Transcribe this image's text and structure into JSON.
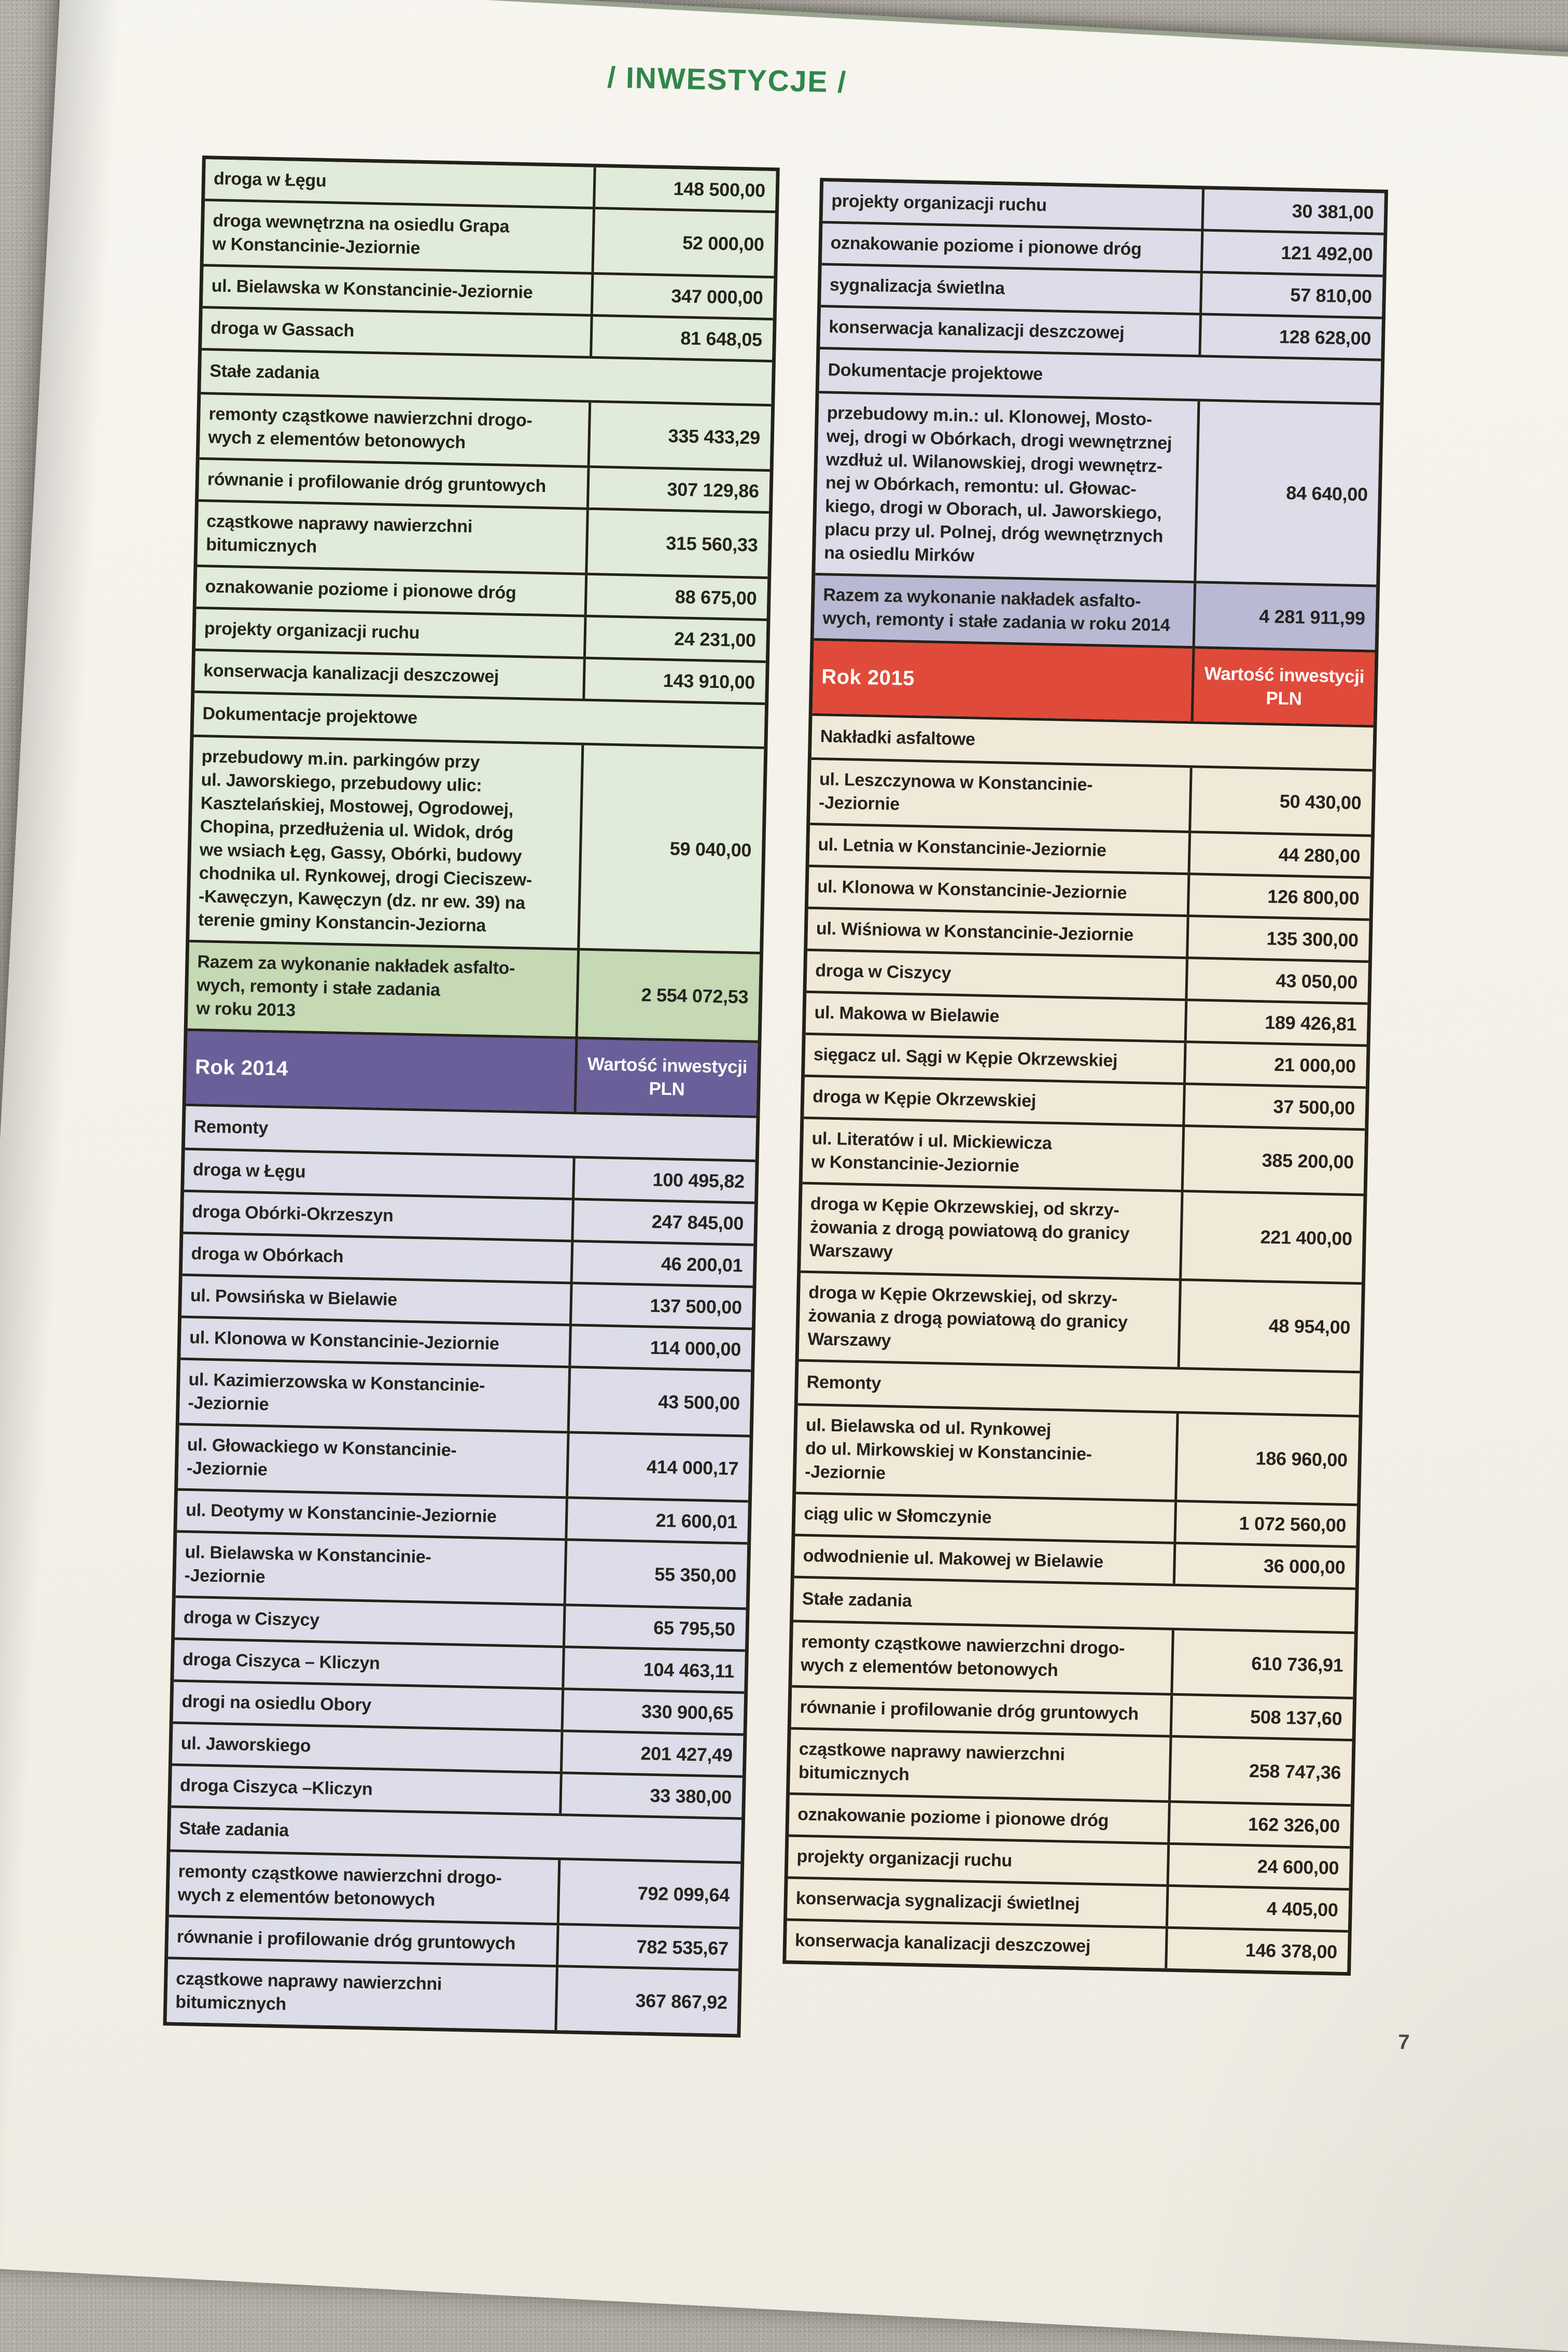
{
  "page": {
    "header": "/ INWESTYCJE /",
    "page_number": "7"
  },
  "value_column_header": "Wartość inwestycji\nPLN",
  "colors": {
    "header_green": "#2f8749",
    "row_green_2013": "#e1ebd9",
    "total_green_2013": "#c4d9b4",
    "year_purple_2014": "#6b5f99",
    "row_lavender_2014": "#dcdde8",
    "total_lavender_2014": "#b9b9d3",
    "year_red_2015": "#e04a3a",
    "row_cream_2015": "#f1e9d8"
  },
  "left_table": {
    "rows": [
      {
        "type": "item",
        "style": "green",
        "label": "droga w Łęgu",
        "value": "148 500,00"
      },
      {
        "type": "item",
        "style": "green",
        "label": "droga wewnętrzna na osiedlu Grapa\nw Konstancinie-Jeziornie",
        "value": "52 000,00"
      },
      {
        "type": "item",
        "style": "green",
        "label": "ul. Bielawska w Konstancinie-Jeziornie",
        "value": "347 000,00"
      },
      {
        "type": "item",
        "style": "green",
        "label": "droga w Gassach",
        "value": "81 648,05"
      },
      {
        "type": "section",
        "style": "green",
        "label": "Stałe zadania"
      },
      {
        "type": "item",
        "style": "green",
        "label": "remonty cząstkowe nawierzchni drogo-\nwych z elementów betonowych",
        "value": "335 433,29"
      },
      {
        "type": "item",
        "style": "green",
        "label": "równanie i profilowanie dróg gruntowych",
        "value": "307 129,86"
      },
      {
        "type": "item",
        "style": "green",
        "label": "cząstkowe naprawy nawierzchni\nbitumicznych",
        "value": "315 560,33"
      },
      {
        "type": "item",
        "style": "green",
        "label": "oznakowanie poziome i pionowe dróg",
        "value": "88 675,00"
      },
      {
        "type": "item",
        "style": "green",
        "label": "projekty organizacji ruchu",
        "value": "24 231,00"
      },
      {
        "type": "item",
        "style": "green",
        "label": "konserwacja kanalizacji deszczowej",
        "value": "143 910,00"
      },
      {
        "type": "section",
        "style": "green",
        "label": "Dokumentacje projektowe"
      },
      {
        "type": "item",
        "style": "green",
        "label": "przebudowy m.in. parkingów przy\nul. Jaworskiego, przebudowy ulic:\nKasztelańskiej, Mostowej, Ogrodowej,\nChopina, przedłużenia ul. Widok, dróg\nwe wsiach Łęg, Gassy, Obórki, budowy\nchodnika ul. Rynkowej, drogi Cieciszew-\n-Kawęczyn, Kawęczyn (dz. nr ew. 39) na\nterenie gminy Konstancin-Jeziorna",
        "value": "59 040,00"
      },
      {
        "type": "total",
        "style": "green-total",
        "label": "Razem za wykonanie nakładek asfalto-\nwych, remonty i stałe zadania\nw roku 2013",
        "value": "2 554 072,53"
      },
      {
        "type": "year",
        "style": "purple",
        "label": "Rok 2014"
      },
      {
        "type": "section",
        "style": "lav",
        "label": "Remonty"
      },
      {
        "type": "item",
        "style": "lav",
        "label": "droga w Łęgu",
        "value": "100 495,82"
      },
      {
        "type": "item",
        "style": "lav",
        "label": "droga Obórki-Okrzeszyn",
        "value": "247 845,00"
      },
      {
        "type": "item",
        "style": "lav",
        "label": "droga w Obórkach",
        "value": "46 200,01"
      },
      {
        "type": "item",
        "style": "lav",
        "label": "ul. Powsińska w Bielawie",
        "value": "137 500,00"
      },
      {
        "type": "item",
        "style": "lav",
        "label": "ul. Klonowa w Konstancinie-Jeziornie",
        "value": "114 000,00"
      },
      {
        "type": "item",
        "style": "lav",
        "label": "ul. Kazimierzowska w Konstancinie-\n-Jeziornie",
        "value": "43 500,00"
      },
      {
        "type": "item",
        "style": "lav",
        "label": "ul. Głowackiego w Konstancinie-\n-Jeziornie",
        "value": "414 000,17"
      },
      {
        "type": "item",
        "style": "lav",
        "label": "ul. Deotymy w Konstancinie-Jeziornie",
        "value": "21 600,01"
      },
      {
        "type": "item",
        "style": "lav",
        "label": "ul. Bielawska w Konstancinie-\n-Jeziornie",
        "value": "55 350,00"
      },
      {
        "type": "item",
        "style": "lav",
        "label": "droga w Ciszycy",
        "value": "65 795,50"
      },
      {
        "type": "item",
        "style": "lav",
        "label": "droga Ciszyca – Kliczyn",
        "value": "104 463,11"
      },
      {
        "type": "item",
        "style": "lav",
        "label": "drogi na osiedlu Obory",
        "value": "330 900,65"
      },
      {
        "type": "item",
        "style": "lav",
        "label": "ul. Jaworskiego",
        "value": "201 427,49"
      },
      {
        "type": "item",
        "style": "lav",
        "label": "droga Ciszyca –Kliczyn",
        "value": "33 380,00"
      },
      {
        "type": "section",
        "style": "lav",
        "label": "Stałe zadania"
      },
      {
        "type": "item",
        "style": "lav",
        "label": "remonty cząstkowe nawierzchni drogo-\nwych z elementów betonowych",
        "value": "792 099,64"
      },
      {
        "type": "item",
        "style": "lav",
        "label": "równanie i profilowanie dróg gruntowych",
        "value": "782 535,67"
      },
      {
        "type": "item",
        "style": "lav",
        "label": "cząstkowe naprawy nawierzchni\nbitumicznych",
        "value": "367 867,92"
      }
    ]
  },
  "right_table": {
    "rows": [
      {
        "type": "item",
        "style": "lav",
        "label": "projekty organizacji ruchu",
        "value": "30 381,00"
      },
      {
        "type": "item",
        "style": "lav",
        "label": "oznakowanie poziome i pionowe dróg",
        "value": "121 492,00"
      },
      {
        "type": "item",
        "style": "lav",
        "label": "sygnalizacja świetlna",
        "value": "57 810,00"
      },
      {
        "type": "item",
        "style": "lav",
        "label": "konserwacja kanalizacji deszczowej",
        "value": "128 628,00"
      },
      {
        "type": "section",
        "style": "lav",
        "label": "Dokumentacje projektowe"
      },
      {
        "type": "item",
        "style": "lav",
        "label": "przebudowy m.in.: ul. Klonowej, Mosto-\nwej, drogi w Obórkach, drogi wewnętrznej\nwzdłuż ul. Wilanowskiej, drogi wewnętrz-\nnej w Obórkach, remontu: ul. Głowac-\nkiego, drogi w Oborach, ul. Jaworskiego,\nplacu przy ul. Polnej, dróg wewnętrznych\nna osiedlu Mirków",
        "value": "84 640,00"
      },
      {
        "type": "total",
        "style": "lav-total",
        "label": "Razem za wykonanie nakładek asfalto-\nwych, remonty i stałe zadania w roku 2014",
        "value": "4 281 911,99"
      },
      {
        "type": "year",
        "style": "red",
        "label": "Rok 2015"
      },
      {
        "type": "section",
        "style": "cream",
        "label": "Nakładki asfaltowe"
      },
      {
        "type": "item",
        "style": "cream",
        "label": "ul. Leszczynowa w Konstancinie-\n-Jeziornie",
        "value": "50 430,00"
      },
      {
        "type": "item",
        "style": "cream",
        "label": "ul. Letnia w Konstancinie-Jeziornie",
        "value": "44 280,00"
      },
      {
        "type": "item",
        "style": "cream",
        "label": "ul. Klonowa w Konstancinie-Jeziornie",
        "value": "126 800,00"
      },
      {
        "type": "item",
        "style": "cream",
        "label": "ul. Wiśniowa w Konstancinie-Jeziornie",
        "value": "135 300,00"
      },
      {
        "type": "item",
        "style": "cream",
        "label": "droga w Ciszycy",
        "value": "43 050,00"
      },
      {
        "type": "item",
        "style": "cream",
        "label": "ul. Makowa w Bielawie",
        "value": "189 426,81"
      },
      {
        "type": "item",
        "style": "cream",
        "label": "sięgacz ul. Sągi w Kępie Okrzewskiej",
        "value": "21 000,00"
      },
      {
        "type": "item",
        "style": "cream",
        "label": "droga w Kępie Okrzewskiej",
        "value": "37 500,00"
      },
      {
        "type": "item",
        "style": "cream",
        "label": "ul. Literatów i ul. Mickiewicza\nw Konstancinie-Jeziornie",
        "value": "385 200,00"
      },
      {
        "type": "item",
        "style": "cream",
        "label": "droga w Kępie Okrzewskiej, od skrzy-\nżowania z drogą powiatową do granicy\nWarszawy",
        "value": "221 400,00"
      },
      {
        "type": "item",
        "style": "cream",
        "label": "droga w Kępie Okrzewskiej, od skrzy-\nżowania z drogą powiatową do granicy\nWarszawy",
        "value": "48 954,00"
      },
      {
        "type": "section",
        "style": "cream",
        "label": "Remonty"
      },
      {
        "type": "item",
        "style": "cream",
        "label": "ul. Bielawska od ul. Rynkowej\ndo ul. Mirkowskiej w Konstancinie-\n-Jeziornie",
        "value": "186 960,00"
      },
      {
        "type": "item",
        "style": "cream",
        "label": "ciąg ulic w Słomczynie",
        "value": "1 072 560,00"
      },
      {
        "type": "item",
        "style": "cream",
        "label": "odwodnienie ul. Makowej w Bielawie",
        "value": "36 000,00"
      },
      {
        "type": "section",
        "style": "cream",
        "label": "Stałe zadania"
      },
      {
        "type": "item",
        "style": "cream",
        "label": "remonty cząstkowe nawierzchni drogo-\nwych z elementów betonowych",
        "value": "610 736,91"
      },
      {
        "type": "item",
        "style": "cream",
        "label": "równanie i profilowanie dróg gruntowych",
        "value": "508 137,60"
      },
      {
        "type": "item",
        "style": "cream",
        "label": "cząstkowe naprawy nawierzchni\nbitumicznych",
        "value": "258 747,36"
      },
      {
        "type": "item",
        "style": "cream",
        "label": "oznakowanie poziome i pionowe dróg",
        "value": "162 326,00"
      },
      {
        "type": "item",
        "style": "cream",
        "label": "projekty organizacji ruchu",
        "value": "24 600,00"
      },
      {
        "type": "item",
        "style": "cream",
        "label": "konserwacja sygnalizacji świetlnej",
        "value": "4 405,00"
      },
      {
        "type": "item",
        "style": "cream",
        "label": "konserwacja kanalizacji deszczowej",
        "value": "146 378,00"
      }
    ]
  }
}
